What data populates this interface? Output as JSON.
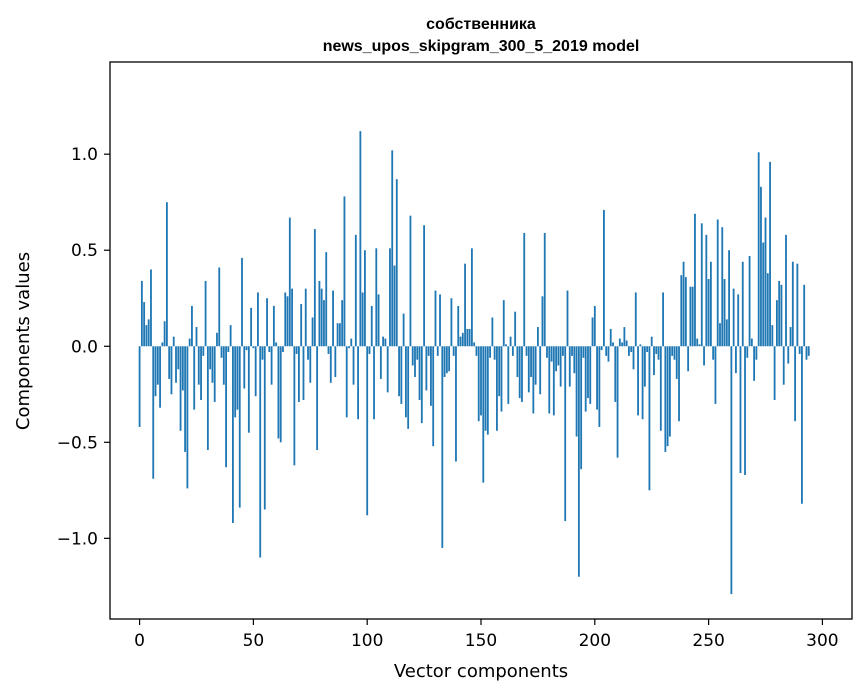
{
  "chart_data": {
    "type": "bar",
    "title_line1": "собственника",
    "title_line2": "news_upos_skipgram_300_5_2019 model",
    "xlabel": "Vector components",
    "ylabel": "Components values",
    "xlim": [
      -13,
      313
    ],
    "ylim": [
      -1.42,
      1.48
    ],
    "xticks": [
      0,
      50,
      100,
      150,
      200,
      250,
      300
    ],
    "xtick_labels": [
      "0",
      "50",
      "100",
      "150",
      "200",
      "250",
      "300"
    ],
    "yticks": [
      -1.0,
      -0.5,
      0.0,
      0.5,
      1.0
    ],
    "ytick_labels": [
      "−1.0",
      "−0.5",
      "0.0",
      "0.5",
      "1.0"
    ],
    "bar_color": "#1f77b4",
    "grid": false,
    "values": [
      -0.42,
      0.34,
      0.23,
      0.11,
      0.14,
      0.4,
      -0.69,
      -0.26,
      -0.2,
      -0.32,
      0.02,
      0.13,
      0.75,
      -0.17,
      -0.25,
      0.05,
      -0.19,
      -0.12,
      -0.44,
      -0.23,
      -0.55,
      -0.74,
      0.04,
      0.21,
      -0.33,
      0.1,
      -0.2,
      -0.28,
      -0.05,
      0.34,
      -0.54,
      -0.12,
      -0.19,
      -0.29,
      0.07,
      0.41,
      -0.06,
      -0.2,
      -0.63,
      -0.03,
      0.11,
      -0.92,
      -0.37,
      -0.33,
      -0.84,
      0.46,
      -0.22,
      -0.02,
      -0.45,
      0.2,
      -0.01,
      -0.26,
      0.28,
      -1.1,
      -0.07,
      -0.85,
      0.25,
      -0.03,
      -0.2,
      0.21,
      0.02,
      -0.48,
      -0.5,
      -0.03,
      0.28,
      0.26,
      0.67,
      0.3,
      -0.62,
      -0.04,
      -0.29,
      0.22,
      -0.28,
      0.3,
      -0.07,
      -0.19,
      0.15,
      0.61,
      -0.54,
      0.34,
      0.3,
      0.24,
      0.49,
      -0.04,
      -0.19,
      0.29,
      -0.16,
      0.12,
      0.12,
      0.24,
      0.78,
      -0.37,
      -0.01,
      0.04,
      -0.2,
      0.58,
      -0.38,
      1.12,
      0.28,
      0.5,
      -0.88,
      -0.04,
      0.21,
      -0.38,
      0.51,
      0.27,
      -0.17,
      0.05,
      0.04,
      -0.24,
      0.51,
      1.02,
      0.42,
      0.87,
      -0.26,
      -0.3,
      0.17,
      -0.37,
      -0.43,
      0.68,
      -0.1,
      -0.16,
      -0.07,
      -0.28,
      -0.4,
      0.63,
      -0.23,
      -0.05,
      -0.31,
      -0.52,
      0.29,
      -0.05,
      0.27,
      -1.05,
      -0.16,
      -0.14,
      -0.13,
      0.25,
      -0.05,
      -0.6,
      0.21,
      0.05,
      0.07,
      0.43,
      0.09,
      0.09,
      0.51,
      0.02,
      -0.05,
      -0.39,
      -0.36,
      -0.71,
      -0.44,
      -0.46,
      -0.06,
      0.15,
      -0.07,
      -0.44,
      -0.26,
      -0.34,
      0.24,
      0.01,
      -0.3,
      0.05,
      -0.05,
      0.18,
      -0.16,
      -0.27,
      -0.29,
      0.59,
      -0.05,
      -0.24,
      -0.16,
      -0.35,
      -0.2,
      0.1,
      -0.25,
      0.26,
      0.59,
      -0.06,
      -0.35,
      -0.08,
      -0.36,
      -0.13,
      -0.1,
      -0.21,
      -0.05,
      -0.91,
      0.29,
      -0.21,
      -0.05,
      -0.14,
      -0.47,
      -1.2,
      -0.64,
      -0.06,
      -0.34,
      -0.27,
      -0.3,
      0.15,
      0.21,
      -0.33,
      -0.42,
      -0.02,
      0.71,
      -0.05,
      -0.08,
      0.09,
      0.02,
      -0.29,
      -0.58,
      0.04,
      0.02,
      0.1,
      0.03,
      -0.05,
      -0.03,
      -0.12,
      0.28,
      -0.36,
      0.01,
      -0.38,
      -0.21,
      -0.03,
      -0.75,
      0.05,
      -0.15,
      -0.04,
      -0.07,
      -0.44,
      0.28,
      -0.55,
      -0.52,
      -0.47,
      -0.05,
      -0.07,
      -0.17,
      -0.39,
      0.37,
      0.44,
      0.36,
      -0.13,
      0.31,
      0.31,
      0.69,
      0.04,
      0.01,
      0.64,
      -0.1,
      0.58,
      0.35,
      0.44,
      -0.07,
      -0.3,
      0.66,
      0.12,
      0.62,
      0.35,
      0.14,
      0.5,
      -1.29,
      0.3,
      -0.14,
      0.27,
      -0.66,
      0.44,
      -0.67,
      -0.06,
      0.47,
      0.04,
      -0.18,
      -0.07,
      1.01,
      0.83,
      0.54,
      0.67,
      0.38,
      0.96,
      0.11,
      -0.28,
      0.24,
      0.34,
      0.32,
      -0.2,
      0.58,
      -0.09,
      0.1,
      0.44,
      -0.39,
      0.43,
      -0.04,
      -0.82,
      0.32,
      -0.07,
      -0.05
    ]
  }
}
